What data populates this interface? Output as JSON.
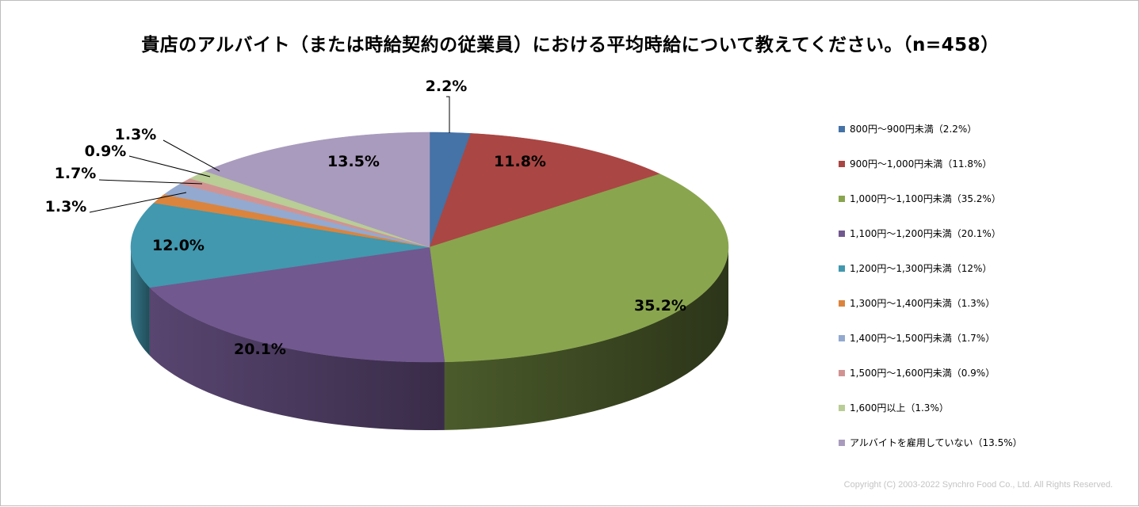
{
  "chart_data": {
    "type": "pie",
    "title": "貴店のアルバイト（または時給契約の従業員）における平均時給について教えてください。（n=458）",
    "categories": [
      "800円～900円未満（2.2%）",
      "900円～1,000円未満（11.8%）",
      "1,000円～1,100円未満（35.2%）",
      "1,100円～1,200円未満（20.1%）",
      "1,200円～1,300円未満（12%）",
      "1,300円～1,400円未満（1.3%）",
      "1,400円～1,500円未満（1.7%）",
      "1,500円～1,600円未満（0.9%）",
      "1,600円以上（1.3%）",
      "アルバイトを雇用していない（13.5%）"
    ],
    "values": [
      2.2,
      11.8,
      35.2,
      20.1,
      12.0,
      1.3,
      1.7,
      0.9,
      1.3,
      13.5
    ],
    "data_labels": [
      "2.2%",
      "11.8%",
      "35.2%",
      "20.1%",
      "12.0%",
      "1.3%",
      "1.7%",
      "0.9%",
      "1.3%",
      "13.5%"
    ],
    "colors": [
      "#4572A7",
      "#AA4643",
      "#89A54E",
      "#71588F",
      "#4198AF",
      "#DB843D",
      "#93A9CF",
      "#D19392",
      "#B9CD96",
      "#A99BBD"
    ],
    "legend_position": "right",
    "style": "3d-pie"
  },
  "footer": {
    "copyright": "Copyright (C) 2003-2022 Synchro Food Co., Ltd. All Rights Reserved."
  }
}
